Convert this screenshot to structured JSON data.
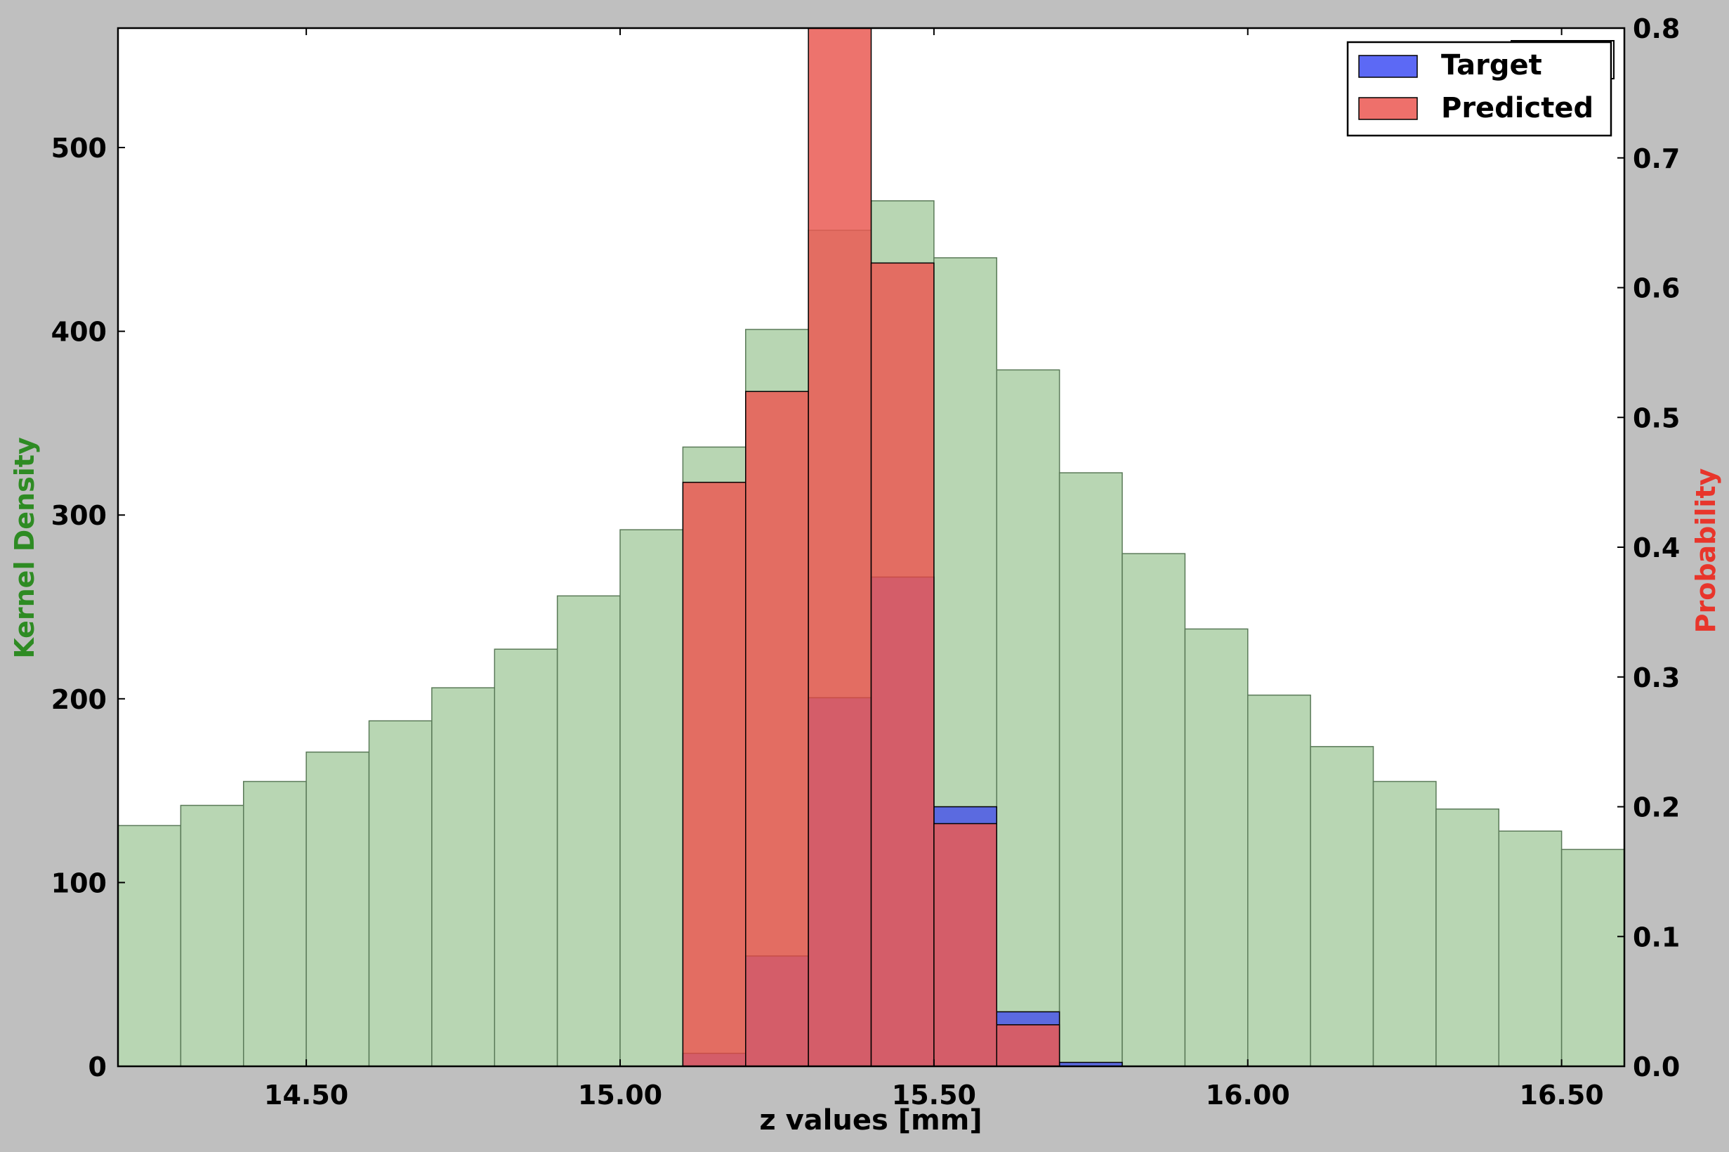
{
  "chart_data": {
    "type": "bar",
    "title": "",
    "xlabel": "z values [mm]",
    "ylabel_left": "Kernel Density",
    "ylabel_right": "Probability",
    "xlim": [
      14.2,
      16.6
    ],
    "ylim_left": [
      0,
      565
    ],
    "ylim_right": [
      0,
      0.8
    ],
    "x_ticks": [
      14.5,
      15.0,
      15.5,
      16.0,
      16.5
    ],
    "x_tick_labels": [
      "14.50",
      "15.00",
      "15.50",
      "16.00",
      "16.50"
    ],
    "y_left_ticks": [
      0,
      100,
      200,
      300,
      400,
      500
    ],
    "y_left_tick_labels": [
      "0",
      "100",
      "200",
      "300",
      "400",
      "500"
    ],
    "y_right_ticks": [
      0.0,
      0.1,
      0.2,
      0.3,
      0.4,
      0.5,
      0.6,
      0.7,
      0.8
    ],
    "y_right_tick_labels": [
      "0.0",
      "0.1",
      "0.2",
      "0.3",
      "0.4",
      "0.5",
      "0.6",
      "0.7",
      "0.8"
    ],
    "bin_edges": [
      14.2,
      14.3,
      14.4,
      14.5,
      14.6,
      14.7,
      14.8,
      14.9,
      15.0,
      15.1,
      15.2,
      15.3,
      15.4,
      15.5,
      15.6,
      15.7,
      15.8,
      15.9,
      16.0,
      16.1,
      16.2,
      16.3,
      16.4,
      16.5,
      16.6
    ],
    "grid": false,
    "legend_position": "top-right",
    "series": [
      {
        "name": "",
        "axis": "left",
        "color": "#b8d6b3",
        "values": [
          131,
          142,
          155,
          171,
          188,
          206,
          227,
          256,
          292,
          337,
          401,
          455,
          471,
          440,
          379,
          323,
          279,
          238,
          202,
          174,
          155,
          140,
          128,
          118
        ]
      },
      {
        "name": "Target",
        "axis": "right",
        "color": "#4a57e8",
        "values": [
          0,
          0,
          0,
          0,
          0,
          0,
          0,
          0,
          0,
          0.01,
          0.085,
          0.284,
          0.377,
          0.2,
          0.042,
          0.003,
          0,
          0,
          0,
          0,
          0,
          0,
          0,
          0
        ]
      },
      {
        "name": "Predicted",
        "axis": "right",
        "color": "#ea5a54",
        "values": [
          0,
          0,
          0,
          0,
          0,
          0,
          0,
          0,
          0,
          0.45,
          0.52,
          0.8,
          0.619,
          0.187,
          0.032,
          0,
          0,
          0,
          0,
          0,
          0,
          0,
          0,
          0
        ]
      }
    ],
    "legend": [
      {
        "label": "Target",
        "color": "#5c69f5"
      },
      {
        "label": "Predicted",
        "color": "#ee706b"
      }
    ],
    "axis_label_colors": {
      "left": "#2e8b23",
      "right": "#e8352b",
      "x": "#000000"
    }
  }
}
